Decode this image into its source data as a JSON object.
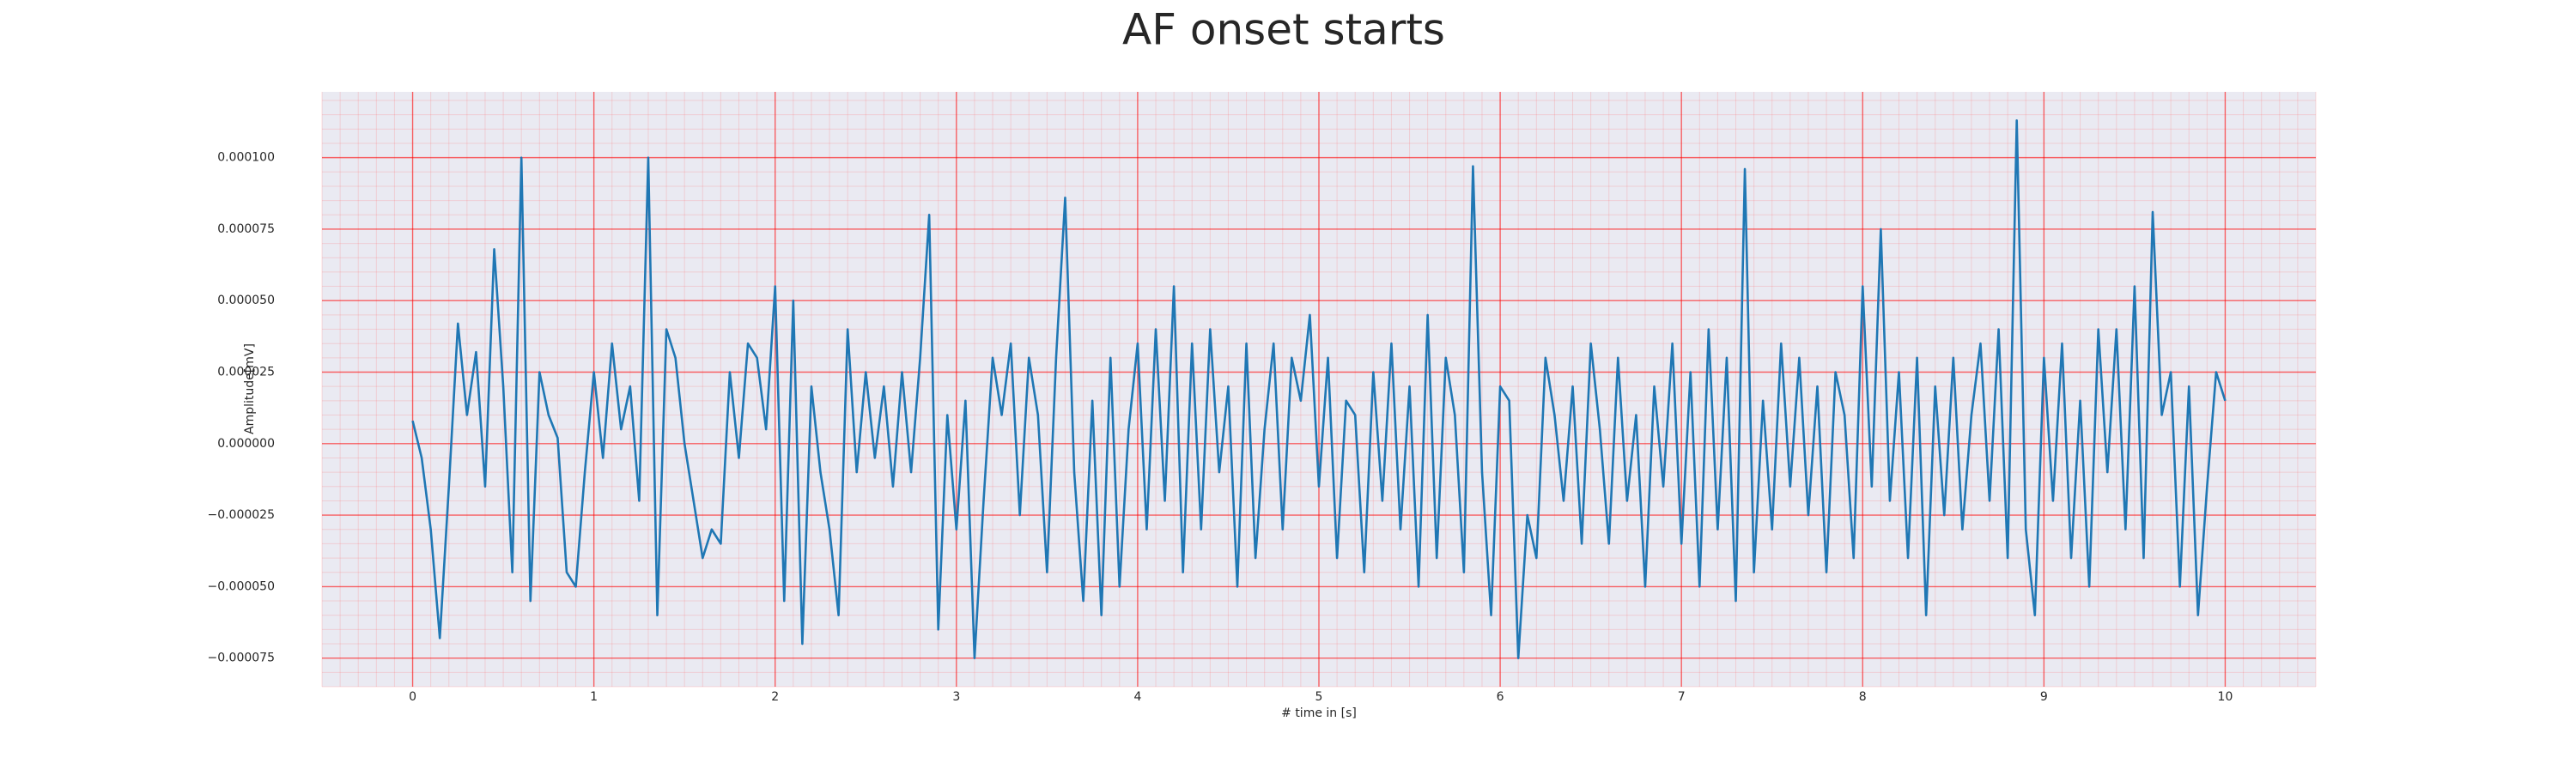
{
  "chart_data": {
    "type": "line",
    "title": "AF onset starts",
    "xlabel": "# time in [s]",
    "ylabel": "Amplitude[mV]",
    "grid": true,
    "minor_grid": true,
    "xlim": [
      -0.5,
      10.5
    ],
    "ylim": [
      -8.5e-05,
      0.000123
    ],
    "xticks": [
      0,
      1,
      2,
      3,
      4,
      5,
      6,
      7,
      8,
      9,
      10
    ],
    "yticks": [
      {
        "value": -7.5e-05,
        "label": "−0.000075"
      },
      {
        "value": -5e-05,
        "label": "−0.000050"
      },
      {
        "value": -2.5e-05,
        "label": "−0.000025"
      },
      {
        "value": 0,
        "label": "0.000000"
      },
      {
        "value": 2.5e-05,
        "label": "0.000025"
      },
      {
        "value": 5e-05,
        "label": "0.000050"
      },
      {
        "value": 7.5e-05,
        "label": "0.000075"
      },
      {
        "value": 0.0001,
        "label": "0.000100"
      }
    ],
    "x": [
      0,
      0.05,
      0.1,
      0.15,
      0.2,
      0.25,
      0.3,
      0.35,
      0.4,
      0.45,
      0.5,
      0.55,
      0.6,
      0.65,
      0.7,
      0.75,
      0.8,
      0.85,
      0.9,
      0.95,
      1,
      1.05,
      1.1,
      1.15,
      1.2,
      1.25,
      1.3,
      1.35,
      1.4,
      1.45,
      1.5,
      1.55,
      1.6,
      1.65,
      1.7,
      1.75,
      1.8,
      1.85,
      1.9,
      1.95,
      2,
      2.05,
      2.1,
      2.15,
      2.2,
      2.25,
      2.3,
      2.35,
      2.4,
      2.45,
      2.5,
      2.55,
      2.6,
      2.65,
      2.7,
      2.75,
      2.8,
      2.85,
      2.9,
      2.95,
      3,
      3.05,
      3.1,
      3.15,
      3.2,
      3.25,
      3.3,
      3.35,
      3.4,
      3.45,
      3.5,
      3.55,
      3.6,
      3.65,
      3.7,
      3.75,
      3.8,
      3.85,
      3.9,
      3.95,
      4,
      4.05,
      4.1,
      4.15,
      4.2,
      4.25,
      4.3,
      4.35,
      4.4,
      4.45,
      4.5,
      4.55,
      4.6,
      4.65,
      4.7,
      4.75,
      4.8,
      4.85,
      4.9,
      4.95,
      5,
      5.05,
      5.1,
      5.15,
      5.2,
      5.25,
      5.3,
      5.35,
      5.4,
      5.45,
      5.5,
      5.55,
      5.6,
      5.65,
      5.7,
      5.75,
      5.8,
      5.85,
      5.9,
      5.95,
      6,
      6.05,
      6.1,
      6.15,
      6.2,
      6.25,
      6.3,
      6.35,
      6.4,
      6.45,
      6.5,
      6.55,
      6.6,
      6.65,
      6.7,
      6.75,
      6.8,
      6.85,
      6.9,
      6.95,
      7,
      7.05,
      7.1,
      7.15,
      7.2,
      7.25,
      7.3,
      7.35,
      7.4,
      7.45,
      7.5,
      7.55,
      7.6,
      7.65,
      7.7,
      7.75,
      7.8,
      7.85,
      7.9,
      7.95,
      8,
      8.05,
      8.1,
      8.15,
      8.2,
      8.25,
      8.3,
      8.35,
      8.4,
      8.45,
      8.5,
      8.55,
      8.6,
      8.65,
      8.7,
      8.75,
      8.8,
      8.85,
      8.9,
      8.95,
      9,
      9.05,
      9.1,
      9.15,
      9.2,
      9.25,
      9.3,
      9.35,
      9.4,
      9.45,
      9.5,
      9.55,
      9.6,
      9.65,
      9.7,
      9.75,
      9.8,
      9.85,
      9.9,
      9.95,
      10
    ],
    "series": [
      {
        "color": "#1f77b4",
        "values": [
          8e-06,
          -5e-06,
          -3e-05,
          -6.8e-05,
          -1.5e-05,
          4.2e-05,
          1e-05,
          3.2e-05,
          -1.5e-05,
          6.8e-05,
          2e-05,
          -4.5e-05,
          0.0001,
          -5.5e-05,
          2.5e-05,
          1e-05,
          2e-06,
          -4.5e-05,
          -5e-05,
          -1e-05,
          2.5e-05,
          -5e-06,
          3.5e-05,
          5e-06,
          2e-05,
          -2e-05,
          0.0001,
          -6e-05,
          4e-05,
          3e-05,
          0,
          -2e-05,
          -4e-05,
          -3e-05,
          -3.5e-05,
          2.5e-05,
          -5e-06,
          3.5e-05,
          3e-05,
          5e-06,
          5.5e-05,
          -5.5e-05,
          5e-05,
          -7e-05,
          2e-05,
          -1e-05,
          -3e-05,
          -6e-05,
          4e-05,
          -1e-05,
          2.5e-05,
          -5e-06,
          2e-05,
          -1.5e-05,
          2.5e-05,
          -1e-05,
          3e-05,
          8e-05,
          -6.5e-05,
          1e-05,
          -3e-05,
          1.5e-05,
          -7.5e-05,
          -2e-05,
          3e-05,
          1e-05,
          3.5e-05,
          -2.5e-05,
          3e-05,
          1e-05,
          -4.5e-05,
          3e-05,
          8.6e-05,
          -1e-05,
          -5.5e-05,
          1.5e-05,
          -6e-05,
          3e-05,
          -5e-05,
          5e-06,
          3.5e-05,
          -3e-05,
          4e-05,
          -2e-05,
          5.5e-05,
          -4.5e-05,
          3.5e-05,
          -3e-05,
          4e-05,
          -1e-05,
          2e-05,
          -5e-05,
          3.5e-05,
          -4e-05,
          5e-06,
          3.5e-05,
          -3e-05,
          3e-05,
          1.5e-05,
          4.5e-05,
          -1.5e-05,
          3e-05,
          -4e-05,
          1.5e-05,
          1e-05,
          -4.5e-05,
          2.5e-05,
          -2e-05,
          3.5e-05,
          -3e-05,
          2e-05,
          -5e-05,
          4.5e-05,
          -4e-05,
          3e-05,
          1e-05,
          -4.5e-05,
          9.7e-05,
          -1e-05,
          -6e-05,
          2e-05,
          1.5e-05,
          -7.5e-05,
          -2.5e-05,
          -4e-05,
          3e-05,
          1e-05,
          -2e-05,
          2e-05,
          -3.5e-05,
          3.5e-05,
          5e-06,
          -3.5e-05,
          3e-05,
          -2e-05,
          1e-05,
          -5e-05,
          2e-05,
          -1.5e-05,
          3.5e-05,
          -3.5e-05,
          2.5e-05,
          -5e-05,
          4e-05,
          -3e-05,
          3e-05,
          -5.5e-05,
          9.6e-05,
          -4.5e-05,
          1.5e-05,
          -3e-05,
          3.5e-05,
          -1.5e-05,
          3e-05,
          -2.5e-05,
          2e-05,
          -4.5e-05,
          2.5e-05,
          1e-05,
          -4e-05,
          5.5e-05,
          -1.5e-05,
          7.5e-05,
          -2e-05,
          2.5e-05,
          -4e-05,
          3e-05,
          -6e-05,
          2e-05,
          -2.5e-05,
          3e-05,
          -3e-05,
          1e-05,
          3.5e-05,
          -2e-05,
          4e-05,
          -4e-05,
          0.000113,
          -3e-05,
          -6e-05,
          3e-05,
          -2e-05,
          3.5e-05,
          -4e-05,
          1.5e-05,
          -5e-05,
          4e-05,
          -1e-05,
          4e-05,
          -3e-05,
          5.5e-05,
          -4e-05,
          8.1e-05,
          1e-05,
          2.5e-05,
          -5e-05,
          2e-05,
          -6e-05,
          -1.5e-05,
          2.5e-05,
          1.5e-05
        ]
      }
    ]
  }
}
